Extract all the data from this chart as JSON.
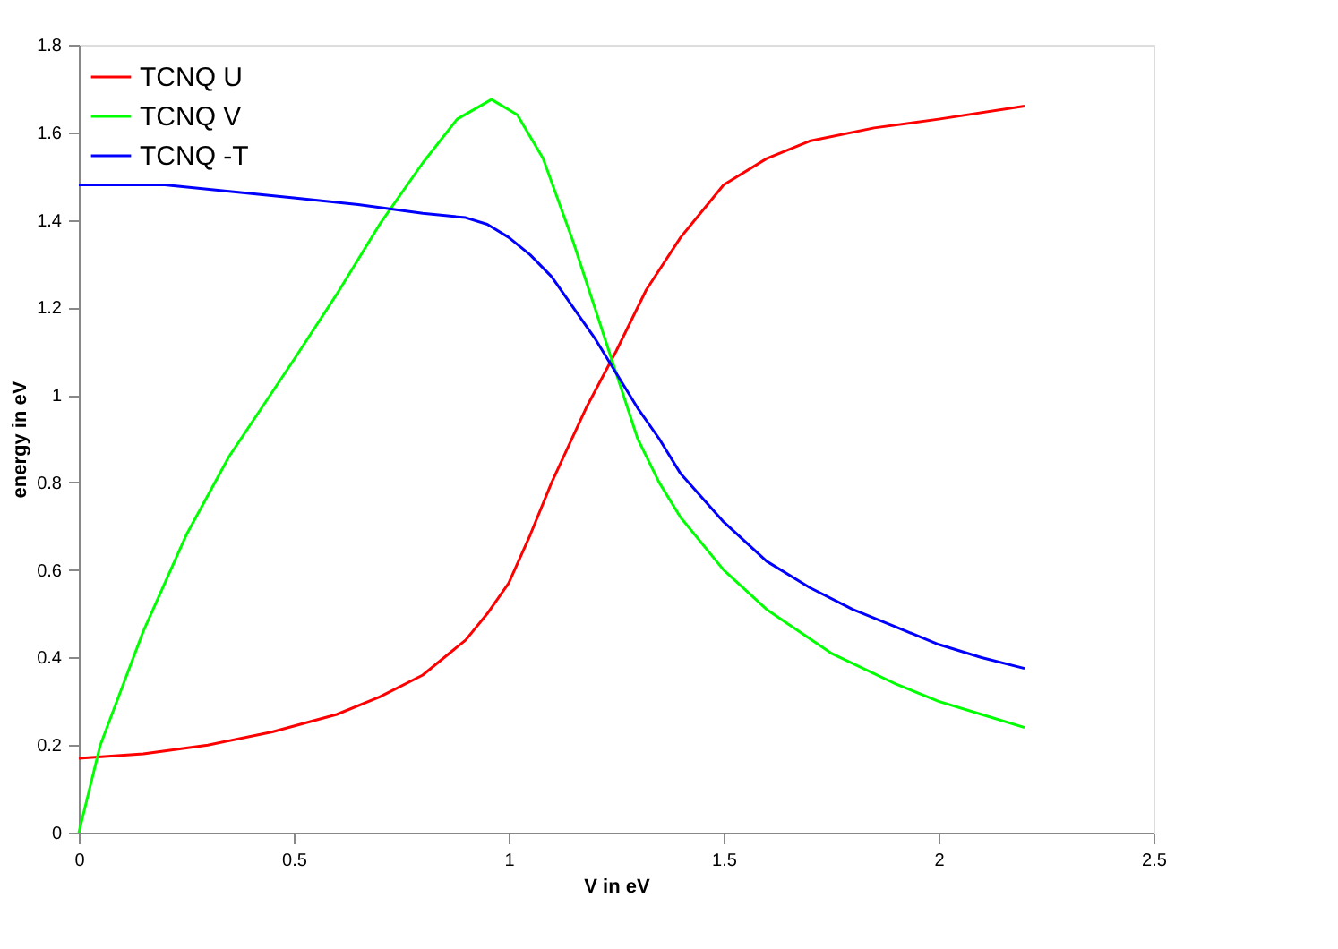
{
  "chart_data": {
    "type": "line",
    "xlabel": "V in eV",
    "ylabel": "energy in eV",
    "xlim": [
      0,
      2.5
    ],
    "xticks": [
      0,
      0.5,
      1,
      1.5,
      2,
      2.5
    ],
    "ylim": [
      0,
      1.8
    ],
    "yticks": [
      0,
      0.2,
      0.4,
      0.6,
      0.8,
      1,
      1.2,
      1.4,
      1.6,
      1.8
    ],
    "grid": false,
    "legend": "top left",
    "line_style": "solid",
    "marker": "none",
    "series": [
      {
        "name": "TCNQ U",
        "color": "#ff0000",
        "x": [
          0,
          0.15,
          0.3,
          0.45,
          0.6,
          0.7,
          0.8,
          0.9,
          0.95,
          1.0,
          1.05,
          1.1,
          1.18,
          1.25,
          1.32,
          1.4,
          1.5,
          1.6,
          1.7,
          1.85,
          2.0,
          2.2
        ],
        "values": [
          0.17,
          0.18,
          0.2,
          0.23,
          0.27,
          0.31,
          0.36,
          0.44,
          0.5,
          0.57,
          0.68,
          0.8,
          0.97,
          1.1,
          1.24,
          1.36,
          1.48,
          1.54,
          1.58,
          1.61,
          1.63,
          1.66
        ]
      },
      {
        "name": "TCNQ V",
        "color": "#00ff00",
        "x": [
          0,
          0.05,
          0.15,
          0.25,
          0.35,
          0.5,
          0.6,
          0.7,
          0.8,
          0.88,
          0.96,
          1.02,
          1.08,
          1.15,
          1.2,
          1.25,
          1.3,
          1.35,
          1.4,
          1.5,
          1.6,
          1.75,
          1.9,
          2.0,
          2.1,
          2.2
        ],
        "values": [
          0,
          0.2,
          0.46,
          0.68,
          0.86,
          1.08,
          1.23,
          1.39,
          1.53,
          1.63,
          1.675,
          1.64,
          1.54,
          1.35,
          1.2,
          1.05,
          0.9,
          0.8,
          0.72,
          0.6,
          0.51,
          0.41,
          0.34,
          0.3,
          0.27,
          0.24
        ]
      },
      {
        "name": "TCNQ -T",
        "color": "#0000ff",
        "x": [
          0,
          0.2,
          0.35,
          0.5,
          0.65,
          0.8,
          0.9,
          0.95,
          1.0,
          1.05,
          1.1,
          1.15,
          1.2,
          1.25,
          1.3,
          1.35,
          1.4,
          1.5,
          1.6,
          1.7,
          1.8,
          1.9,
          2.0,
          2.1,
          2.2
        ],
        "values": [
          1.48,
          1.48,
          1.465,
          1.45,
          1.435,
          1.415,
          1.405,
          1.39,
          1.36,
          1.32,
          1.27,
          1.2,
          1.13,
          1.05,
          0.97,
          0.9,
          0.82,
          0.71,
          0.62,
          0.56,
          0.51,
          0.47,
          0.43,
          0.4,
          0.375
        ]
      }
    ]
  }
}
